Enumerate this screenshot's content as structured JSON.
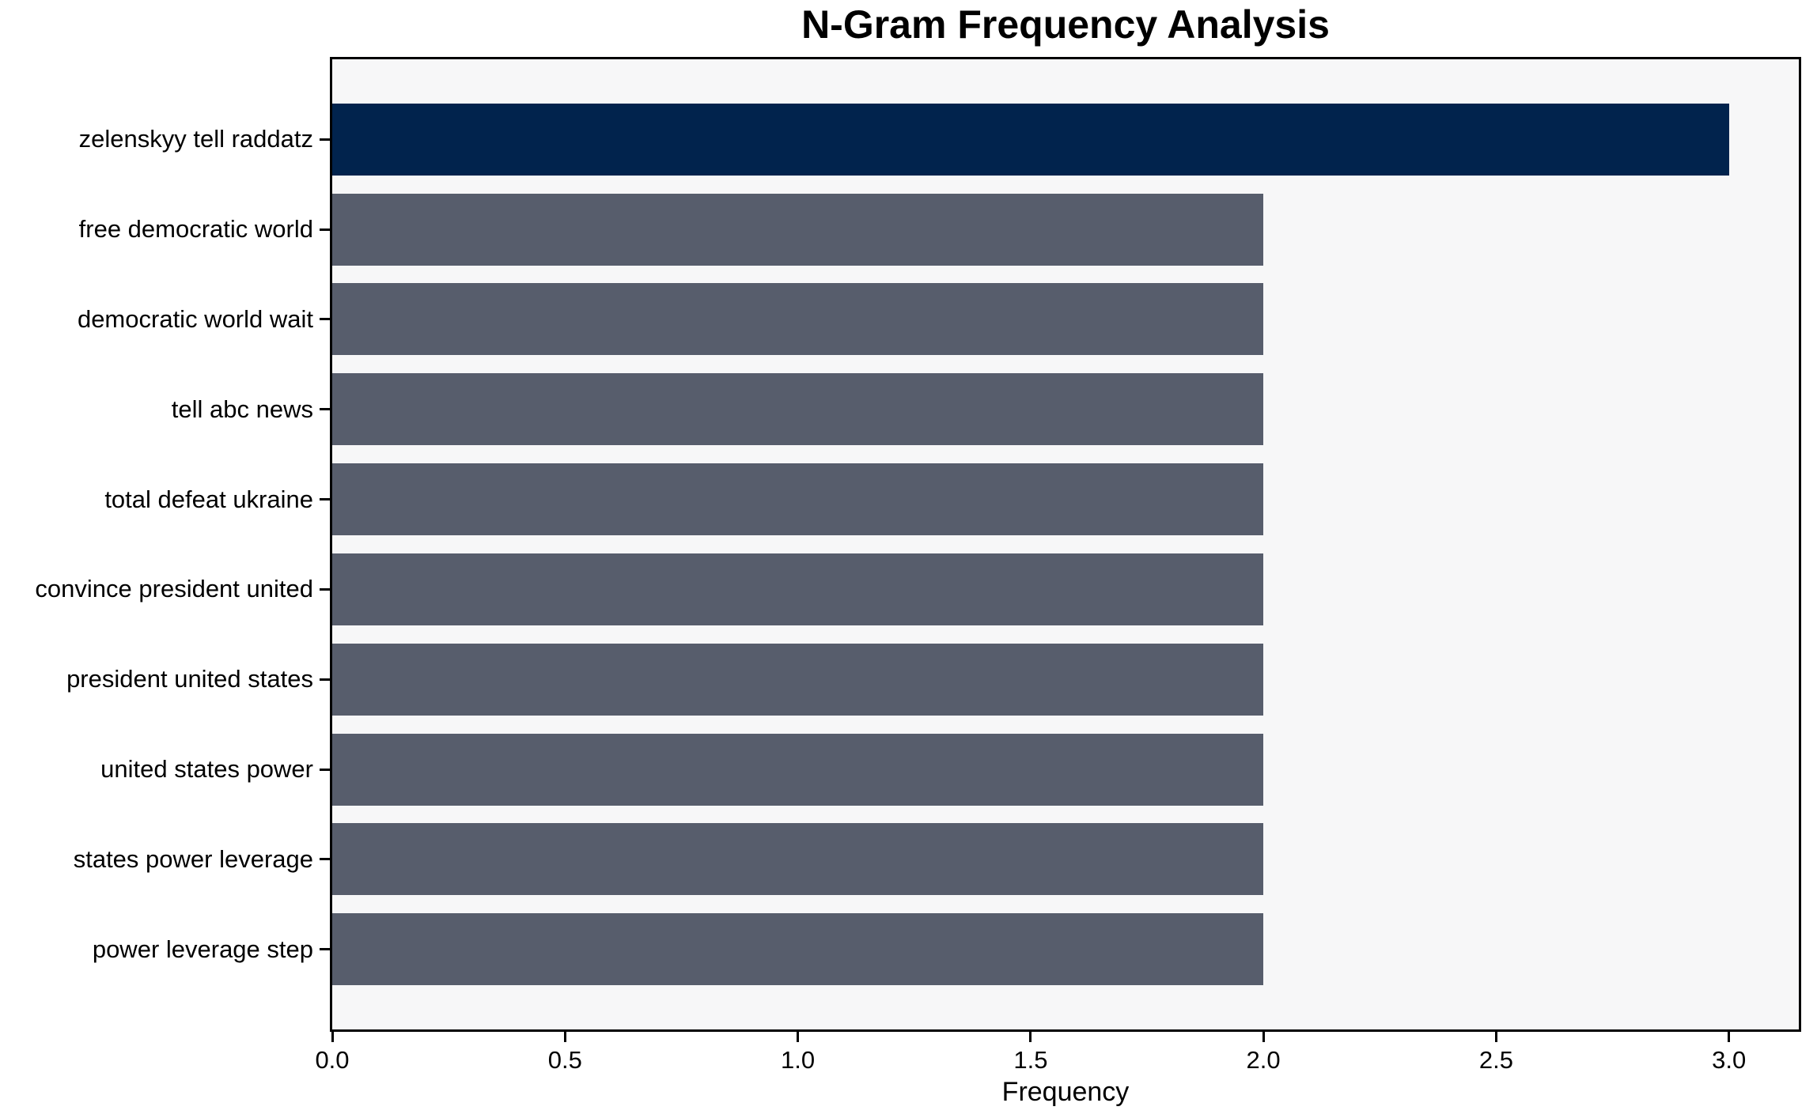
{
  "chart_data": {
    "type": "bar",
    "orientation": "horizontal",
    "title": "N-Gram Frequency Analysis",
    "xlabel": "Frequency",
    "ylabel": "",
    "categories": [
      "zelenskyy tell raddatz",
      "free democratic world",
      "democratic world wait",
      "tell abc news",
      "total defeat ukraine",
      "convince president united",
      "president united states",
      "united states power",
      "states power leverage",
      "power leverage step"
    ],
    "values": [
      3,
      2,
      2,
      2,
      2,
      2,
      2,
      2,
      2,
      2
    ],
    "bar_colors": [
      "#01234d",
      "#575d6c",
      "#575d6c",
      "#575d6c",
      "#575d6c",
      "#575d6c",
      "#575d6c",
      "#575d6c",
      "#575d6c",
      "#575d6c"
    ],
    "xlim": [
      0,
      3.15
    ],
    "x_ticks": [
      0,
      0.5,
      1.0,
      1.5,
      2.0,
      2.5,
      3.0
    ],
    "x_tick_labels": [
      "0.0",
      "0.5",
      "1.0",
      "1.5",
      "2.0",
      "2.5",
      "3.0"
    ],
    "grid": false,
    "legend": false,
    "plot_background": "#f7f7f8",
    "figure_background": "#ffffff"
  }
}
